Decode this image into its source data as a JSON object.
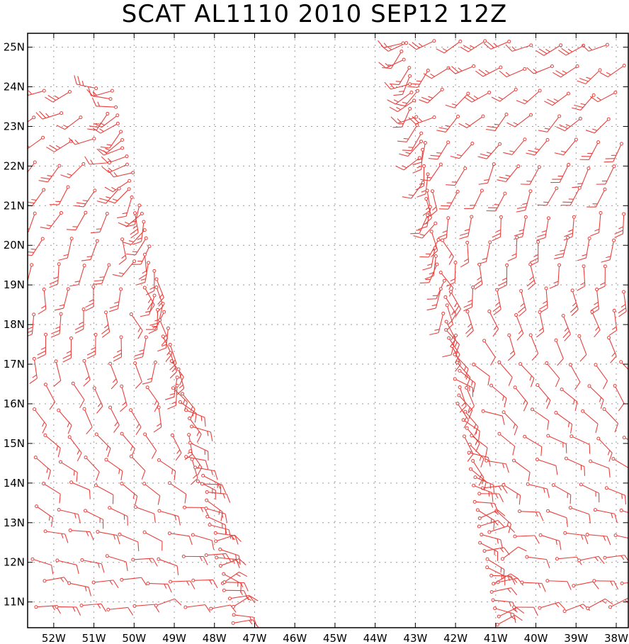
{
  "title": "SCAT AL1110 2010 SEP12 12Z",
  "map": {
    "lon_range": [
      -52.65,
      -37.7
    ],
    "lat_range": [
      10.35,
      25.35
    ],
    "barb_color": "#e8403c",
    "grid_color": "#9a9a9a",
    "x_ticks": [
      {
        "value": -52,
        "label": "52W"
      },
      {
        "value": -51,
        "label": "51W"
      },
      {
        "value": -50,
        "label": "50W"
      },
      {
        "value": -49,
        "label": "49W"
      },
      {
        "value": -48,
        "label": "48W"
      },
      {
        "value": -47,
        "label": "47W"
      },
      {
        "value": -46,
        "label": "46W"
      },
      {
        "value": -45,
        "label": "45W"
      },
      {
        "value": -44,
        "label": "44W"
      },
      {
        "value": -43,
        "label": "43W"
      },
      {
        "value": -42,
        "label": "42W"
      },
      {
        "value": -41,
        "label": "41W"
      },
      {
        "value": -40,
        "label": "40W"
      },
      {
        "value": -39,
        "label": "39W"
      },
      {
        "value": -38,
        "label": "38W"
      }
    ],
    "y_ticks": [
      {
        "value": 25,
        "label": "25N"
      },
      {
        "value": 24,
        "label": "24N"
      },
      {
        "value": 23,
        "label": "23N"
      },
      {
        "value": 22,
        "label": "22N"
      },
      {
        "value": 21,
        "label": "21N"
      },
      {
        "value": 20,
        "label": "20N"
      },
      {
        "value": 19,
        "label": "19N"
      },
      {
        "value": 18,
        "label": "18N"
      },
      {
        "value": 17,
        "label": "17N"
      },
      {
        "value": 16,
        "label": "16N"
      },
      {
        "value": 15,
        "label": "15N"
      },
      {
        "value": 14,
        "label": "14N"
      },
      {
        "value": 13,
        "label": "13N"
      },
      {
        "value": 12,
        "label": "12N"
      },
      {
        "value": 11,
        "label": "11N"
      }
    ],
    "swaths": [
      {
        "name": "west-swath",
        "lon_w": -52.65,
        "lon_e": -48.3,
        "top_lat": 23.9,
        "bottom_lat": 10.35,
        "edge_top_lon": -50.6,
        "edge_bottom_lon": -47.5,
        "dir_north": 250,
        "dir_south": 75
      },
      {
        "name": "east-swath",
        "lon_w": -43.2,
        "lon_e": -37.7,
        "top_lat": 25.1,
        "bottom_lat": 10.6,
        "edge_top_lon": -43.3,
        "edge_bottom_lon": -41.0,
        "dir_north": 245,
        "dir_south": 70
      }
    ]
  },
  "chart_data": {
    "type": "scatter",
    "title": "SCAT AL1110 2010 SEP12 12Z",
    "xlabel": "Longitude",
    "ylabel": "Latitude",
    "xlim": [
      -52.65,
      -37.7
    ],
    "ylim": [
      10.35,
      25.35
    ],
    "x_tick_labels": [
      "52W",
      "51W",
      "50W",
      "49W",
      "48W",
      "47W",
      "46W",
      "45W",
      "44W",
      "43W",
      "42W",
      "41W",
      "40W",
      "39W",
      "38W"
    ],
    "y_tick_labels": [
      "25N",
      "24N",
      "23N",
      "22N",
      "21N",
      "20N",
      "19N",
      "18N",
      "17N",
      "16N",
      "15N",
      "14N",
      "13N",
      "12N",
      "11N"
    ],
    "grid": true,
    "series": [
      {
        "name": "scatterometer wind barbs (west swath)",
        "lon_range": [
          -52.65,
          -47.5
        ],
        "lat_range": [
          10.35,
          23.9
        ]
      },
      {
        "name": "scatterometer wind barbs (east swath)",
        "lon_range": [
          -43.3,
          -37.7
        ],
        "lat_range": [
          10.6,
          25.1
        ]
      }
    ]
  }
}
